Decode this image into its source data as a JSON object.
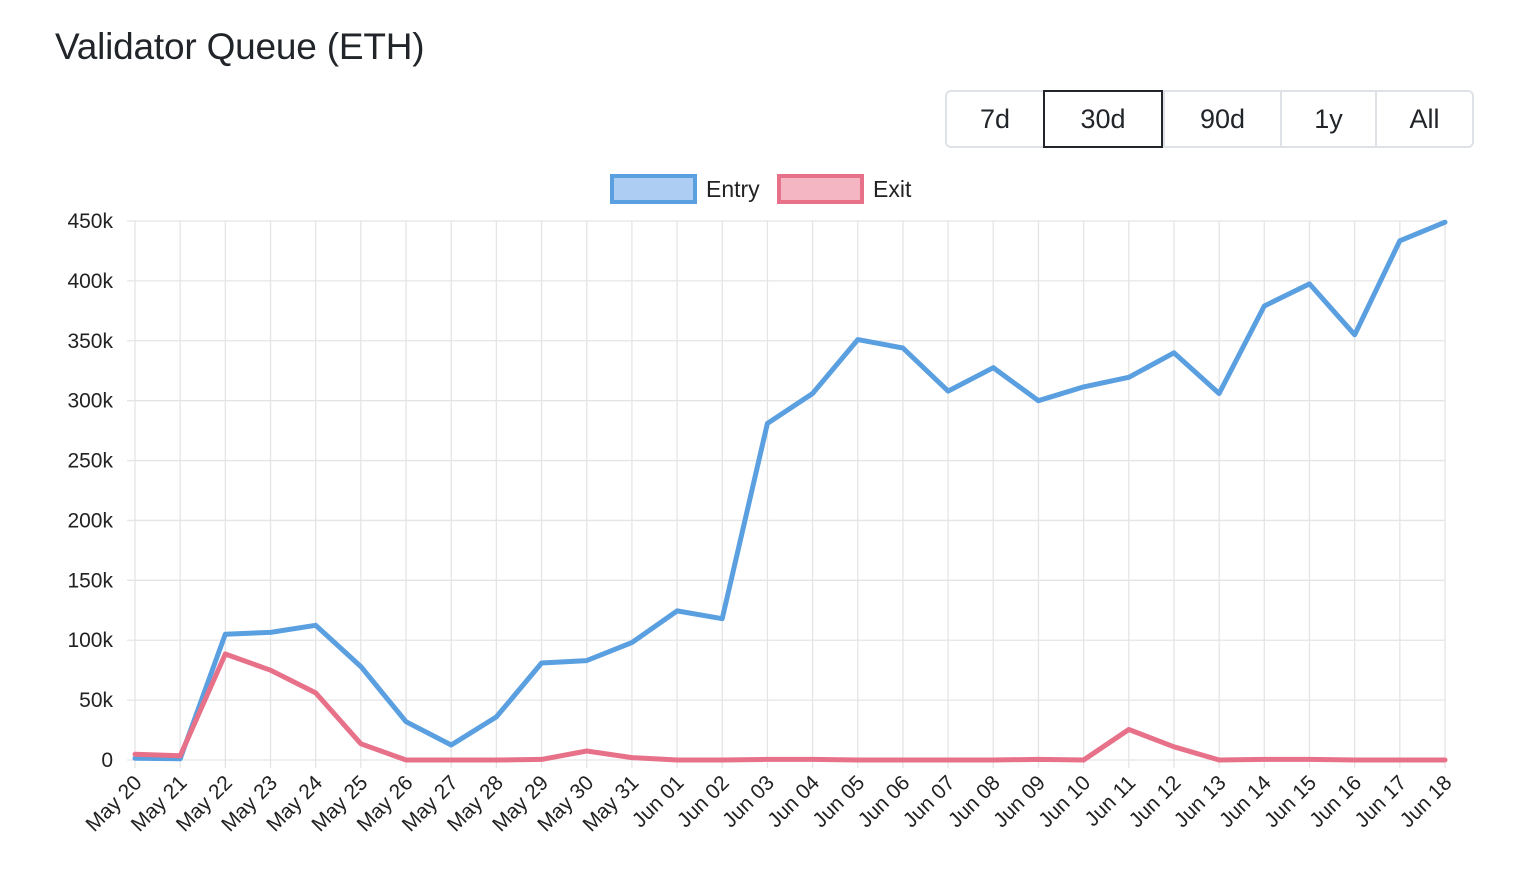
{
  "header": {
    "title": "Validator Queue (ETH)"
  },
  "range_selector": {
    "options": [
      "7d",
      "30d",
      "90d",
      "1y",
      "All"
    ],
    "active": "30d"
  },
  "colors": {
    "entry_line": "#5a9fe0",
    "entry_fill": "#aecdf2",
    "exit_line": "#e8718a",
    "exit_fill": "#f4b6c3",
    "grid": "#e5e5e5",
    "text": "#222222"
  },
  "chart_data": {
    "type": "line",
    "title": "",
    "xlabel": "",
    "ylabel": "",
    "categories": [
      "May 20",
      "May 21",
      "May 22",
      "May 23",
      "May 24",
      "May 25",
      "May 26",
      "May 27",
      "May 28",
      "May 29",
      "May 30",
      "May 31",
      "Jun 01",
      "Jun 02",
      "Jun 03",
      "Jun 04",
      "Jun 05",
      "Jun 06",
      "Jun 07",
      "Jun 08",
      "Jun 09",
      "Jun 10",
      "Jun 11",
      "Jun 12",
      "Jun 13",
      "Jun 14",
      "Jun 15",
      "Jun 16",
      "Jun 17",
      "Jun 18"
    ],
    "series": [
      {
        "name": "Entry",
        "values": [
          1500,
          1000,
          105000,
          106500,
          112500,
          78000,
          32000,
          12500,
          36000,
          81000,
          83000,
          98000,
          124500,
          118000,
          281000,
          306000,
          351000,
          344000,
          308000,
          327500,
          300000,
          311500,
          319500,
          340000,
          306000,
          379000,
          397500,
          355000,
          433500,
          449000
        ]
      },
      {
        "name": "Exit",
        "values": [
          4800,
          3500,
          88500,
          75000,
          56000,
          13500,
          0,
          0,
          0,
          500,
          7500,
          2000,
          0,
          0,
          500,
          500,
          0,
          0,
          0,
          0,
          500,
          0,
          25500,
          11000,
          0,
          500,
          500,
          0,
          0,
          0
        ]
      }
    ],
    "ylim": [
      0,
      450000
    ],
    "yticks": [
      0,
      50000,
      100000,
      150000,
      200000,
      250000,
      300000,
      350000,
      400000,
      450000
    ],
    "ytick_labels": [
      "0",
      "50k",
      "100k",
      "150k",
      "200k",
      "250k",
      "300k",
      "350k",
      "400k",
      "450k"
    ],
    "grid": true,
    "legend_position": "top-center"
  }
}
